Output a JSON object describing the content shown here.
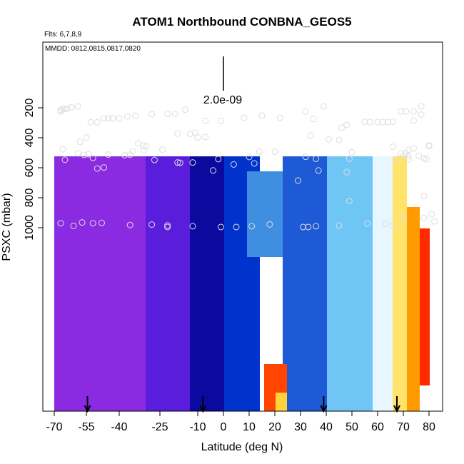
{
  "chart_data": {
    "type": "heatmap",
    "title": "ATOM1 Northbound CONBNA_GEOS5",
    "flights_label": "Flts: 6,7,8,9",
    "dates_label": "MMDD: 0812,0815,0817,0820",
    "scale_label": "2.0e-09",
    "xlabel": "Latitude (deg N)",
    "ylabel": "PSXC (mbar)",
    "xlim": [
      -70,
      85
    ],
    "ylim": [
      1000,
      0
    ],
    "x_ticks": [
      -70,
      -55,
      -40,
      -25,
      -10,
      0,
      10,
      20,
      30,
      40,
      50,
      60,
      70,
      80
    ],
    "y_ticks": [
      200,
      400,
      600,
      800,
      1000
    ],
    "arrow_latitudes": [
      -54.5,
      -8,
      39,
      67.5
    ],
    "profile_points": [
      [
        -67,
        215
      ],
      [
        -66,
        208
      ],
      [
        -65,
        208
      ],
      [
        -64,
        205
      ],
      [
        -62,
        197
      ],
      [
        -59,
        190
      ],
      [
        -67,
        225
      ],
      [
        -53,
        297
      ],
      [
        -50,
        297
      ],
      [
        -47,
        270
      ],
      [
        -45,
        270
      ],
      [
        -43,
        270
      ],
      [
        -40,
        270
      ],
      [
        -37,
        257
      ],
      [
        -34,
        253
      ],
      [
        -28,
        242
      ],
      [
        -22,
        240
      ],
      [
        -19,
        240
      ],
      [
        -15,
        213
      ],
      [
        -7,
        287
      ],
      [
        -1,
        287
      ],
      [
        8,
        267
      ],
      [
        15,
        252
      ],
      [
        22,
        267
      ],
      [
        32,
        225
      ],
      [
        35,
        275
      ],
      [
        39,
        190
      ],
      [
        -13,
        375
      ],
      [
        -11,
        365
      ],
      [
        -10,
        398
      ],
      [
        -7,
        395
      ],
      [
        -18,
        372
      ],
      [
        -33,
        437
      ],
      [
        -31,
        485
      ],
      [
        -31,
        452
      ],
      [
        -36,
        513
      ],
      [
        -27,
        548
      ],
      [
        -24,
        479
      ],
      [
        -18,
        565
      ],
      [
        -17,
        567
      ],
      [
        -12,
        565
      ],
      [
        -2,
        542
      ],
      [
        -4,
        618
      ],
      [
        4,
        578
      ],
      [
        10,
        528
      ],
      [
        12,
        571
      ],
      [
        14,
        492
      ],
      [
        20,
        493
      ],
      [
        32,
        527
      ],
      [
        34,
        384
      ],
      [
        36,
        540
      ],
      [
        37,
        618
      ],
      [
        41,
        411
      ],
      [
        45,
        414
      ],
      [
        46,
        333
      ],
      [
        48,
        313
      ],
      [
        49,
        540
      ],
      [
        48,
        629
      ],
      [
        49,
        822
      ],
      [
        55,
        294
      ],
      [
        57,
        296
      ],
      [
        60,
        295
      ],
      [
        62,
        296
      ],
      [
        64,
        295
      ],
      [
        66,
        293
      ],
      [
        69,
        224
      ],
      [
        71,
        224
      ],
      [
        74,
        224
      ],
      [
        77,
        190
      ],
      [
        77,
        245
      ],
      [
        74,
        286
      ],
      [
        66,
        460
      ],
      [
        67,
        544
      ],
      [
        69,
        505
      ],
      [
        70,
        521
      ],
      [
        71,
        502
      ],
      [
        72,
        521
      ],
      [
        72,
        481
      ],
      [
        72,
        544
      ],
      [
        74,
        471
      ],
      [
        76,
        521
      ],
      [
        80,
        455
      ],
      [
        80,
        451
      ],
      [
        78,
        536
      ],
      [
        78,
        790
      ],
      [
        79,
        543
      ],
      [
        -66,
        477
      ],
      [
        -65,
        547
      ],
      [
        -58,
        427
      ],
      [
        -59,
        504
      ],
      [
        -56,
        514
      ],
      [
        -54,
        510
      ],
      [
        -52,
        534
      ],
      [
        -50,
        605
      ],
      [
        -47,
        598
      ],
      [
        -45,
        512
      ],
      [
        -38,
        516
      ],
      [
        -35,
        491
      ],
      [
        -30,
        458
      ],
      [
        -55,
        398
      ],
      [
        -67,
        970
      ],
      [
        -61,
        988
      ],
      [
        -57,
        965
      ],
      [
        -52,
        970
      ],
      [
        -48,
        968
      ],
      [
        -36,
        982
      ],
      [
        -28,
        979
      ],
      [
        -22,
        995
      ],
      [
        -22,
        985
      ],
      [
        -12,
        990
      ],
      [
        -1,
        995
      ],
      [
        5,
        995
      ],
      [
        11,
        990
      ],
      [
        18,
        978
      ],
      [
        31,
        995
      ],
      [
        33,
        995
      ],
      [
        36,
        990
      ],
      [
        45,
        985
      ],
      [
        50,
        497
      ],
      [
        56,
        972
      ],
      [
        63,
        975
      ],
      [
        66,
        985
      ],
      [
        70,
        942
      ],
      [
        78,
        935
      ],
      [
        81,
        910
      ],
      [
        82,
        958
      ],
      [
        29,
        685
      ]
    ]
  }
}
